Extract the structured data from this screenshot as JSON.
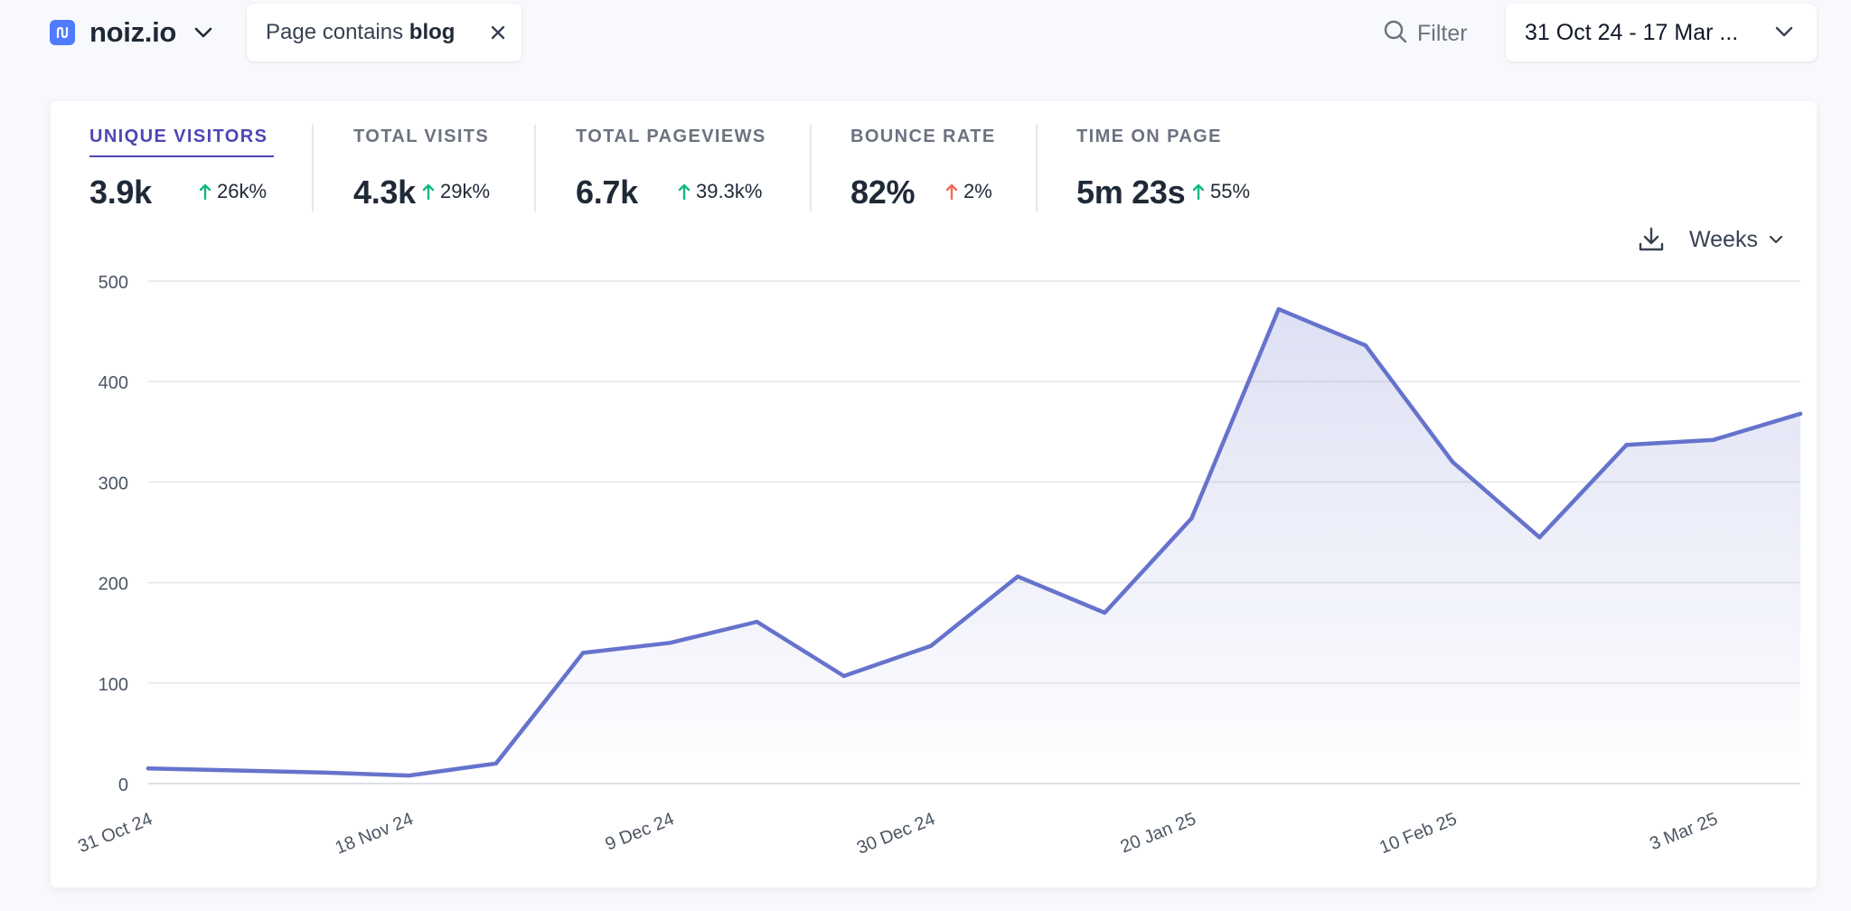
{
  "header": {
    "site_name": "noiz.io",
    "filter_pill": {
      "prefix": "Page contains",
      "value": "blog"
    },
    "filter_label": "Filter",
    "date_range": "31 Oct 24 - 17 Mar ..."
  },
  "metrics": [
    {
      "label": "UNIQUE VISITORS",
      "value": "3.9k",
      "change": "26k%",
      "trend": "up"
    },
    {
      "label": "TOTAL VISITS",
      "value": "4.3k",
      "change": "29k%",
      "trend": "up"
    },
    {
      "label": "TOTAL PAGEVIEWS",
      "value": "6.7k",
      "change": "39.3k%",
      "trend": "up"
    },
    {
      "label": "BOUNCE RATE",
      "value": "82%",
      "change": "2%",
      "trend": "up-bad"
    },
    {
      "label": "TIME ON PAGE",
      "value": "5m 23s",
      "change": "55%",
      "trend": "up"
    }
  ],
  "controls": {
    "interval": "Weeks"
  },
  "colors": {
    "accent": "#4f46b5",
    "line": "#6673cc",
    "up_good": "#10b981",
    "up_bad": "#ef6b5a",
    "logo": "#4f7cff"
  },
  "icons": [
    "logo-icon",
    "chevron-down-icon",
    "close-icon",
    "search-icon",
    "download-icon",
    "arrow-up-icon"
  ],
  "chart_data": {
    "type": "area",
    "series": [
      {
        "values": [
          15,
          13,
          11,
          8,
          20,
          130,
          140,
          161,
          107,
          137,
          206,
          170,
          264,
          472,
          436,
          320,
          245,
          337,
          342,
          368
        ]
      }
    ],
    "x_tick_labels": [
      "31 Oct 24",
      "18 Nov 24",
      "9 Dec 24",
      "30 Dec 24",
      "20 Jan 25",
      "10 Feb 25",
      "3 Mar 25"
    ],
    "x_tick_indices": [
      0,
      3,
      6,
      9,
      12,
      15,
      18
    ],
    "y_ticks": [
      0,
      100,
      200,
      300,
      400,
      500
    ],
    "ylim": [
      0,
      500
    ],
    "grid": true,
    "legend": "none"
  }
}
